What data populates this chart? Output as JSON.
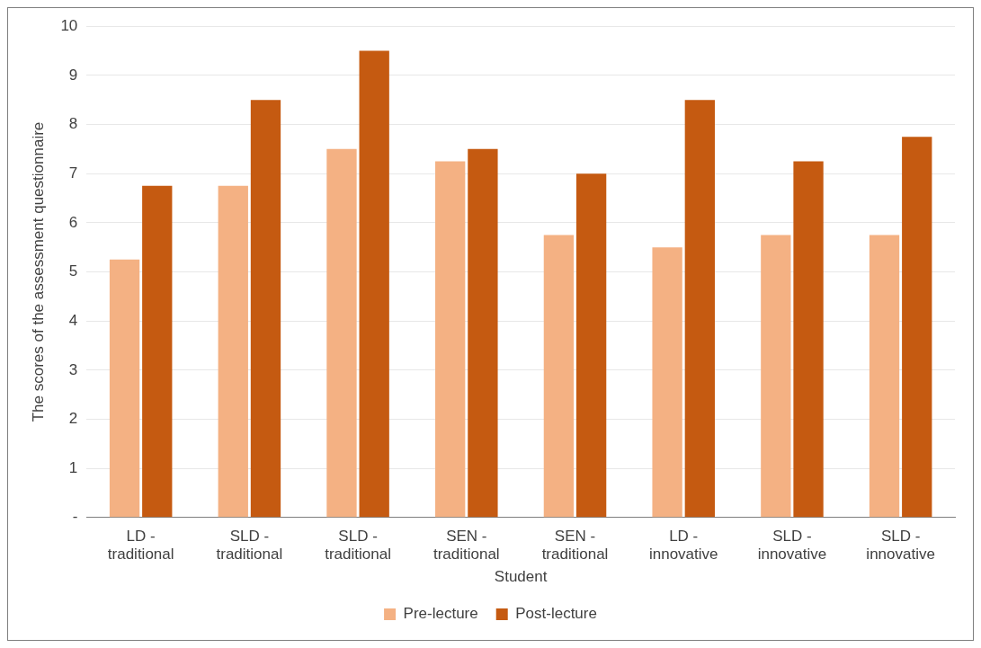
{
  "chart_data": {
    "type": "bar",
    "xlabel": "Student",
    "ylabel": "The scores of the assessment questionnaire",
    "categories": [
      "LD - traditional",
      "SLD - traditional",
      "SLD - traditional",
      "SEN - traditional",
      "SEN - traditional",
      "LD - innovative",
      "SLD - innovative",
      "SLD - innovative"
    ],
    "series": [
      {
        "name": "Pre-lecture",
        "color": "#f4b183",
        "values": [
          5.25,
          6.75,
          7.5,
          7.25,
          5.75,
          5.5,
          5.75,
          5.75
        ]
      },
      {
        "name": "Post-lecture",
        "color": "#c55a11",
        "values": [
          6.75,
          8.5,
          9.5,
          7.5,
          7.0,
          8.5,
          7.25,
          7.75
        ]
      }
    ],
    "ylim": [
      0,
      10
    ],
    "yticks": [
      {
        "value": 0,
        "label": "-"
      },
      1,
      2,
      3,
      4,
      5,
      6,
      7,
      8,
      9,
      10
    ],
    "grid": "y",
    "legend": "bottom"
  }
}
